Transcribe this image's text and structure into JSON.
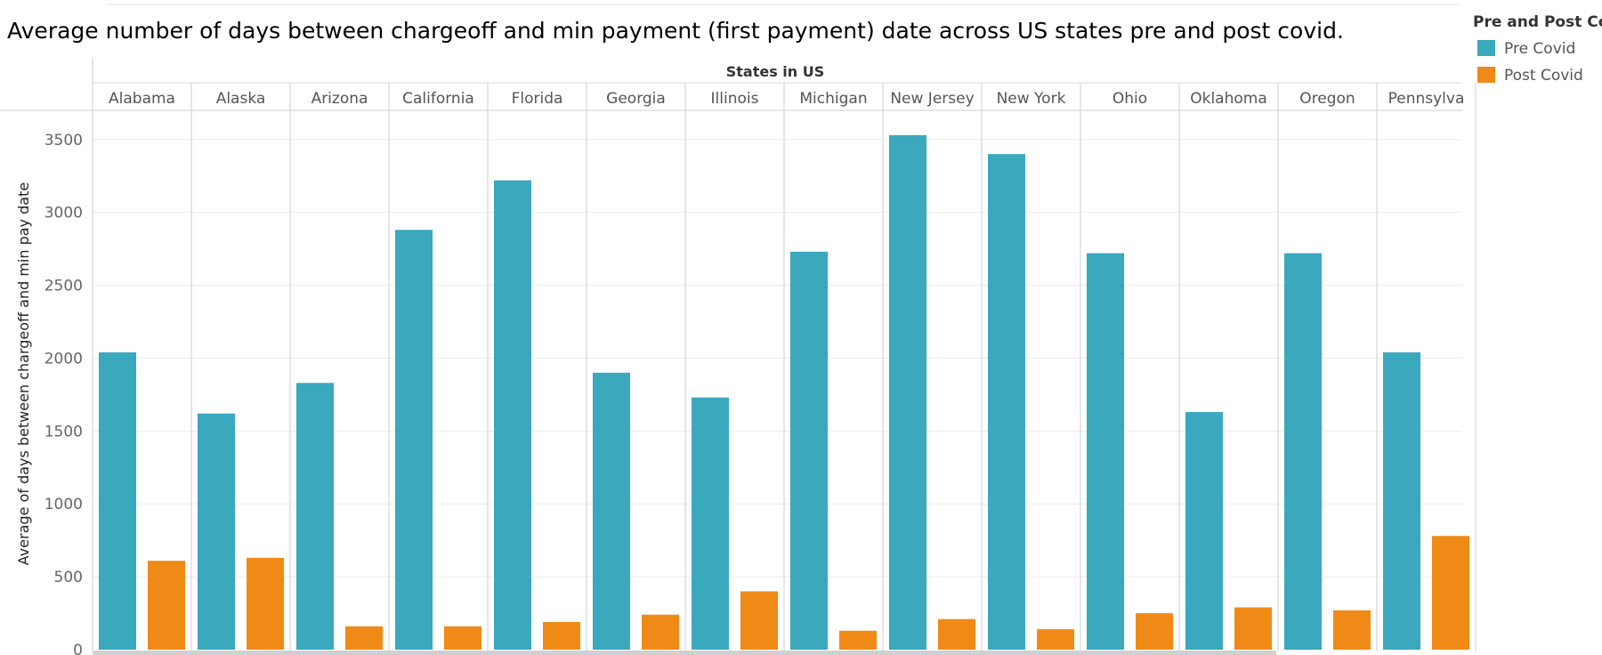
{
  "chart_data": {
    "type": "bar",
    "title": "Average number of days between chargeoff and min payment (first payment) date across US states pre and post covid.",
    "column_header": "States in US",
    "ylabel": "Average of days between chargeoff and min pay date",
    "ylim": [
      0,
      3700
    ],
    "yticks": [
      0,
      500,
      1000,
      1500,
      2000,
      2500,
      3000,
      3500
    ],
    "grid": true,
    "legend": {
      "title": "Pre and Post Co",
      "placement": "top-right",
      "entries": [
        "Pre Covid",
        "Post Covid"
      ]
    },
    "categories": [
      "Alabama",
      "Alaska",
      "Arizona",
      "California",
      "Florida",
      "Georgia",
      "Illinois",
      "Michigan",
      "New Jersey",
      "New York",
      "Ohio",
      "Oklahoma",
      "Oregon",
      "Pennsylva"
    ],
    "series": [
      {
        "name": "Pre Covid",
        "color": "#3aa8bd",
        "values": [
          2040,
          1620,
          1830,
          2880,
          3220,
          1900,
          1730,
          2730,
          3530,
          3400,
          2720,
          1630,
          2720,
          2040
        ]
      },
      {
        "name": "Post Covid",
        "color": "#f08a16",
        "values": [
          610,
          630,
          160,
          160,
          190,
          240,
          400,
          130,
          210,
          140,
          250,
          290,
          270,
          780
        ]
      }
    ]
  }
}
